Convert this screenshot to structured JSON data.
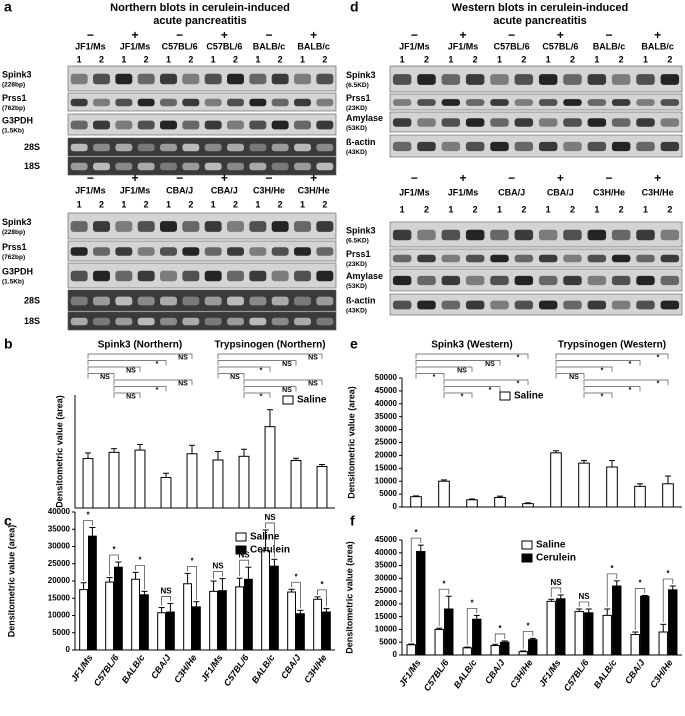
{
  "panel_letters": [
    "a",
    "d",
    "b",
    "e",
    "c",
    "f"
  ],
  "blot_titles": [
    [
      "Northern blots in cerulein-induced",
      "acute pancreatitis"
    ],
    [
      "Western blots in cerulein-induced",
      "acute pancreatitis"
    ]
  ],
  "blots": [
    {
      "strains": [
        "JF1/Ms",
        "JF1/Ms",
        "C57BL/6",
        "C57BL/6",
        "BALB/c",
        "BALB/c"
      ],
      "treatments": [
        "−",
        "+",
        "−",
        "+",
        "−",
        "+"
      ],
      "lanes": [
        "1",
        "2"
      ],
      "rows": [
        {
          "name": "Spink3",
          "size": "(228bp)"
        },
        {
          "name": "Prss1",
          "size": "(762bp)"
        },
        {
          "name": "G3PDH",
          "size": "(1.5Kb)"
        },
        {
          "name": "28S"
        },
        {
          "name": "18S"
        }
      ]
    },
    {
      "strains": [
        "JF1/Ms",
        "JF1/Ms",
        "CBA/J",
        "CBA/J",
        "C3H/He",
        "C3H/He"
      ],
      "treatments": [
        "−",
        "+",
        "−",
        "+",
        "−",
        "+"
      ],
      "lanes": [
        "1",
        "2"
      ],
      "rows": [
        {
          "name": "Spink3",
          "size": "(228bp)"
        },
        {
          "name": "Prss1",
          "size": "(762bp)"
        },
        {
          "name": "G3PDH",
          "size": "(1.5Kb)"
        },
        {
          "name": "28S"
        },
        {
          "name": "18S"
        }
      ]
    },
    {
      "strains": [
        "JF1/Ms",
        "JF1/Ms",
        "C57BL/6",
        "C57BL/6",
        "BALB/c",
        "BALB/c"
      ],
      "treatments": [
        "−",
        "+",
        "−",
        "+",
        "−",
        "+"
      ],
      "lanes": [
        "1",
        "2"
      ],
      "rows": [
        {
          "name": "Spink3",
          "size": "(6.5KD)"
        },
        {
          "name": "Prss1",
          "size": "(23KD)"
        },
        {
          "name": "Amylase",
          "size": "(53KD)"
        },
        {
          "name": "ß-actin",
          "size": "(43KD)"
        }
      ]
    },
    {
      "strains": [
        "JF1/Ms",
        "JF1/Ms",
        "CBA/J",
        "CBA/J",
        "C3H/He",
        "C3H/He"
      ],
      "treatments": [
        "−",
        "+",
        "−",
        "+",
        "−",
        "+"
      ],
      "lanes": [
        "1",
        "2"
      ],
      "rows": [
        {
          "name": "Spink3",
          "size": "(6.5KD)"
        },
        {
          "name": "Prss1",
          "size": "(23KD)"
        },
        {
          "name": "Amylase",
          "size": "(53KD)"
        },
        {
          "name": "ß-actin",
          "size": "(43KD)"
        }
      ]
    }
  ],
  "chart_data": [
    {
      "type": "bar",
      "y_label": "Densitometric value (area)",
      "group_titles": [
        "Spink3 (Northern)",
        "Trypsinogen (Northern)"
      ],
      "ylim": [
        0,
        40000
      ],
      "series": [
        {
          "name": "Saline",
          "color": "#ffffff",
          "values": [
            17500,
            19700,
            20500,
            10800,
            19200,
            17000,
            18300,
            28800,
            16800,
            14700
          ],
          "errors": [
            2000,
            1300,
            2000,
            1500,
            3000,
            3000,
            2500,
            6000,
            800,
            700
          ]
        }
      ],
      "comparisons": [
        {
          "between": [
            0,
            4
          ],
          "label": "NS"
        },
        {
          "between": [
            0,
            3
          ],
          "label": "*"
        },
        {
          "between": [
            0,
            2
          ],
          "label": "NS"
        },
        {
          "between": [
            0,
            1
          ],
          "label": "NS"
        },
        {
          "between": [
            1,
            4
          ],
          "label": "NS"
        },
        {
          "between": [
            1,
            3
          ],
          "label": "*"
        },
        {
          "between": [
            1,
            2
          ],
          "label": "NS"
        },
        {
          "between": [
            5,
            9
          ],
          "label": "NS"
        },
        {
          "between": [
            5,
            8
          ],
          "label": "NS"
        },
        {
          "between": [
            5,
            7
          ],
          "label": "*"
        },
        {
          "between": [
            5,
            6
          ],
          "label": "NS"
        },
        {
          "between": [
            6,
            9
          ],
          "label": "NS"
        },
        {
          "between": [
            6,
            8
          ],
          "label": "NS"
        },
        {
          "between": [
            6,
            7
          ],
          "label": "*"
        }
      ]
    },
    {
      "type": "bar",
      "y_label": "Densitometric value (area)",
      "ylim": [
        0,
        40000
      ],
      "yticks": [
        0,
        5000,
        10000,
        15000,
        20000,
        25000,
        30000,
        35000,
        40000
      ],
      "categories": [
        "JF1/Ms",
        "C57BL/6",
        "BALB/c",
        "CBA/J",
        "C3H/He",
        "JF1/Ms",
        "C57BL/6",
        "BALB/c",
        "CBA/J",
        "C3H/He"
      ],
      "series": [
        {
          "name": "Saline",
          "color": "#ffffff",
          "values": [
            17500,
            19700,
            20500,
            10800,
            19200,
            17000,
            18300,
            28800,
            16800,
            14700
          ],
          "errors": [
            2000,
            1300,
            2000,
            1500,
            3000,
            3000,
            2500,
            6000,
            800,
            700
          ]
        },
        {
          "name": "Cerulein",
          "color": "#000000",
          "values": [
            33000,
            24000,
            16000,
            11000,
            12500,
            17200,
            20500,
            24300,
            10500,
            11000
          ],
          "errors": [
            2500,
            1500,
            1000,
            2500,
            1500,
            3500,
            3500,
            2000,
            1000,
            1000
          ]
        }
      ],
      "pair_labels": [
        "*",
        "*",
        "*",
        "NS",
        "*",
        "NS",
        "NS",
        "NS",
        "*",
        "*"
      ]
    },
    {
      "type": "bar",
      "y_label": "Densitometric value (area)",
      "group_titles": [
        "Spink3 (Western)",
        "Trypsinogen (Western)"
      ],
      "ylim": [
        0,
        50000
      ],
      "yticks": [
        0,
        5000,
        10000,
        15000,
        20000,
        25000,
        30000,
        35000,
        40000,
        45000,
        50000
      ],
      "series": [
        {
          "name": "Saline",
          "color": "#ffffff",
          "values": [
            4000,
            10000,
            2800,
            3700,
            1300,
            21000,
            17000,
            15500,
            8000,
            9000
          ],
          "errors": [
            300,
            500,
            300,
            500,
            300,
            800,
            1000,
            2500,
            1000,
            3000
          ]
        }
      ],
      "comparisons": [
        {
          "between": [
            0,
            4
          ],
          "label": "*"
        },
        {
          "between": [
            0,
            3
          ],
          "label": "NS"
        },
        {
          "between": [
            0,
            2
          ],
          "label": "NS"
        },
        {
          "between": [
            0,
            1
          ],
          "label": "*"
        },
        {
          "between": [
            1,
            4
          ],
          "label": "*"
        },
        {
          "between": [
            1,
            3
          ],
          "label": "*"
        },
        {
          "between": [
            1,
            2
          ],
          "label": "*"
        },
        {
          "between": [
            5,
            9
          ],
          "label": "*"
        },
        {
          "between": [
            5,
            8
          ],
          "label": "*"
        },
        {
          "between": [
            5,
            7
          ],
          "label": "*"
        },
        {
          "between": [
            5,
            6
          ],
          "label": "NS"
        },
        {
          "between": [
            6,
            9
          ],
          "label": "*"
        },
        {
          "between": [
            6,
            8
          ],
          "label": "*"
        },
        {
          "between": [
            6,
            7
          ],
          "label": "*"
        }
      ]
    },
    {
      "type": "bar",
      "y_label": "Densitometric value (area)",
      "ylim": [
        0,
        45000
      ],
      "yticks": [
        0,
        5000,
        10000,
        15000,
        20000,
        25000,
        30000,
        35000,
        40000,
        45000
      ],
      "categories": [
        "JF1/Ms",
        "C57BL/6",
        "BALB/c",
        "CBA/J",
        "C3H/He",
        "JF1/Ms",
        "C57BL/6",
        "BALB/c",
        "CBA/J",
        "C3H/He"
      ],
      "series": [
        {
          "name": "Saline",
          "color": "#ffffff",
          "values": [
            4000,
            10000,
            2800,
            3700,
            1300,
            21000,
            17000,
            15500,
            8000,
            9000
          ],
          "errors": [
            300,
            500,
            300,
            500,
            300,
            800,
            1000,
            2500,
            1000,
            3000
          ]
        },
        {
          "name": "Cerulein",
          "color": "#000000",
          "values": [
            40500,
            18000,
            14000,
            5000,
            6000,
            22000,
            16500,
            27000,
            23000,
            25500
          ],
          "errors": [
            2500,
            5000,
            1500,
            500,
            500,
            1500,
            1500,
            2000,
            300,
            1500
          ]
        }
      ],
      "pair_labels": [
        "*",
        "*",
        "*",
        "*",
        "*",
        "NS",
        "NS",
        "*",
        "*",
        "*"
      ]
    }
  ]
}
